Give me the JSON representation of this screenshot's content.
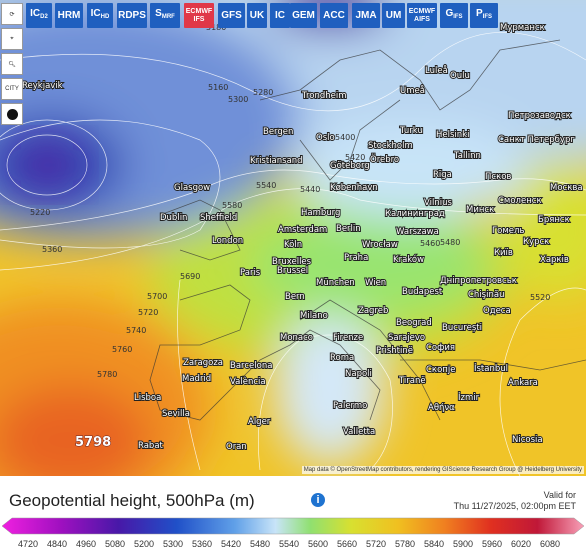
{
  "toolbar": {
    "models": [
      {
        "label": "IC",
        "sub": "D2"
      },
      {
        "label": "HRM"
      },
      {
        "label": "IC",
        "sub": "HD"
      },
      {
        "label": "RDPS"
      },
      {
        "label": "S",
        "sub": "MRF"
      },
      {
        "label": "ECMWF",
        "line2": "IFS"
      },
      {
        "label": "GFS"
      },
      {
        "label": "UK"
      },
      {
        "label": "IC"
      },
      {
        "label": "GEM"
      },
      {
        "label": "ACC"
      },
      {
        "label": "JMA"
      },
      {
        "label": "UM"
      },
      {
        "label": "ECMWF",
        "line2": "AIFS"
      },
      {
        "label": "G",
        "sub": "IFS"
      },
      {
        "label": "P",
        "sub": "IFS"
      }
    ]
  },
  "sidebar": {
    "city_button": "CITY"
  },
  "map": {
    "cities": [
      "Reykjavik",
      "Trondheim",
      "Umeå",
      "Luleå",
      "Oulu",
      "Мурманск",
      "Bergen",
      "Oslo",
      "Stockholm",
      "Turku",
      "Helsinki",
      "Петрозаводск",
      "Санкт Петербург",
      "Tallinn",
      "Kristiansand",
      "Göteborg",
      "Örebro",
      "Rīga",
      "Псков",
      "Москва",
      "Glasgow",
      "København",
      "Vilnius",
      "Минск",
      "Смоленск",
      "Dublin",
      "Sheffield",
      "Hamburg",
      "Калининград",
      "Брянск",
      "Amsterdam",
      "Berlin",
      "Warszawa",
      "Гомель",
      "Курск",
      "London",
      "Köln",
      "Wrocław",
      "Київ",
      "Харків",
      "Bruxelles",
      "Brussel",
      "Praha",
      "Kraków",
      "Paris",
      "Wien",
      "Дніпропетровськ",
      "München",
      "Budapest",
      "Chişinău",
      "Bern",
      "Milano",
      "Zagreb",
      "Одеса",
      "Beograd",
      "București",
      "Monaco",
      "Firenze",
      "Sarajevo",
      "Roma",
      "София",
      "Zaragoza",
      "Barcelona",
      "Prishtinë",
      "Madrid",
      "València",
      "Napoli",
      "Скопје",
      "İstanbul",
      "Tiranë",
      "Ankara",
      "Lisboa",
      "Sevilla",
      "Palermo",
      "Αθήνα",
      "İzmir",
      "Alger",
      "Valletta",
      "Rabat",
      "Oran",
      "Nicosia"
    ],
    "contour_labels": [
      "5798",
      "5700",
      "5720",
      "5740",
      "5760",
      "5780",
      "5690",
      "5540",
      "5580",
      "5360",
      "5300",
      "5280",
      "5180",
      "5400",
      "5420",
      "5480",
      "5520",
      "5440",
      "5460",
      "5160",
      "5220"
    ],
    "attribution": "Map data © OpenStreetMap contributors, rendering GIScience Research Group @ Heidelberg University"
  },
  "footer": {
    "title": "Geopotential height, 500hPa (m)",
    "valid_label": "Valid for",
    "valid_time": "Thu 11/27/2025, 02:00pm EET",
    "scale": [
      "4720",
      "4840",
      "4960",
      "5080",
      "5200",
      "5300",
      "5360",
      "5420",
      "5480",
      "5540",
      "5600",
      "5660",
      "5720",
      "5780",
      "5840",
      "5900",
      "5960",
      "6020",
      "6080"
    ]
  }
}
